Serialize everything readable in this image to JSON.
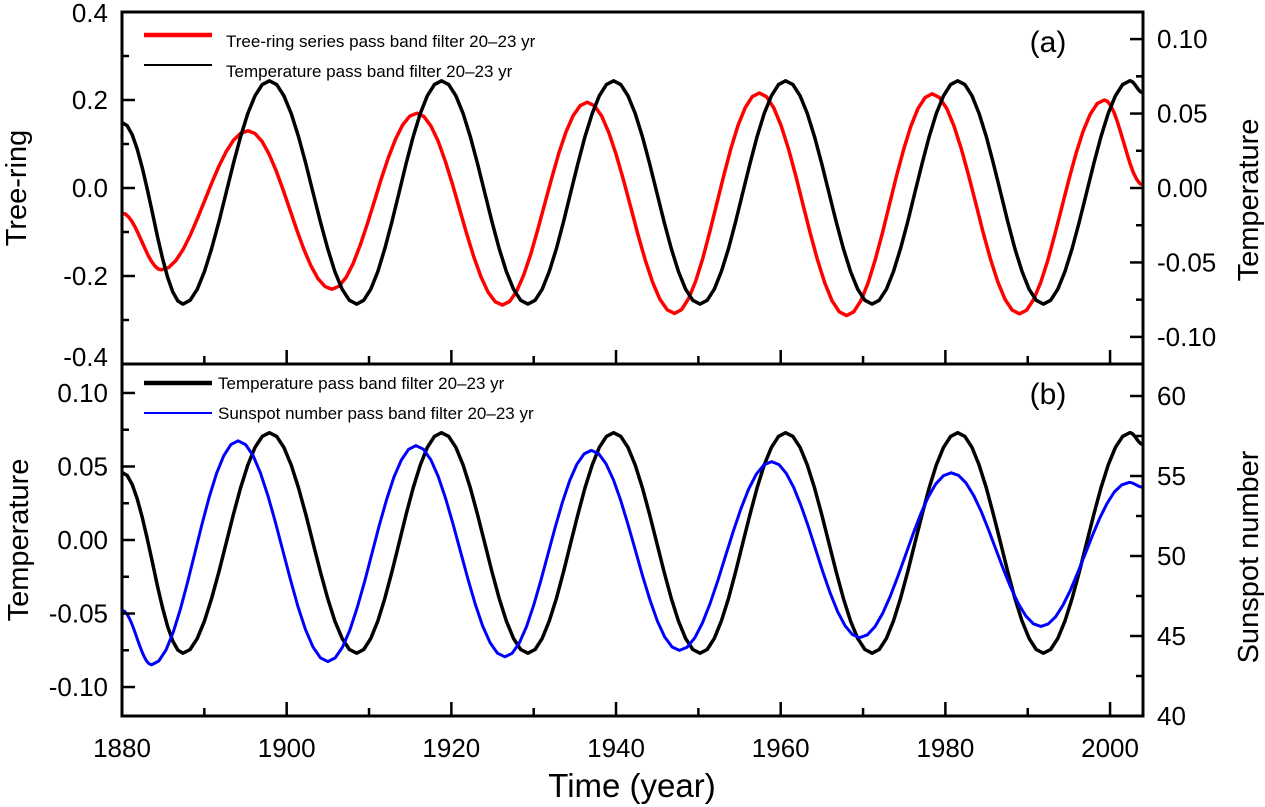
{
  "chart_data": [
    {
      "type": "line",
      "panel_label": "(a)",
      "xlabel": "",
      "xlim": [
        1880,
        2004
      ],
      "x_ticks": [
        1880,
        1900,
        1920,
        1940,
        1960,
        1980,
        2000
      ],
      "ylabel_left": "Tree-ring",
      "ylim_left": [
        -0.4,
        0.4
      ],
      "y_ticks_left": [
        "-0.4",
        "-0.2",
        "0.0",
        "0.2",
        "0.4"
      ],
      "y_tick_values_left": [
        -0.4,
        -0.2,
        0.0,
        0.2,
        0.4
      ],
      "ylabel_right": "Temperature",
      "ylim_right": [
        -0.1182,
        0.1182
      ],
      "y_ticks_right": [
        "-0.10",
        "-0.05",
        "0.00",
        "0.05",
        "0.10"
      ],
      "y_tick_values_right": [
        -0.1,
        -0.05,
        0.0,
        0.05,
        0.1
      ],
      "legend_position": "top-left",
      "series": [
        {
          "name": "Tree-ring series pass band filter 20–23 yr",
          "axis": "left",
          "color": "#ff0000",
          "keypoints": [
            [
              1880,
              -0.057
            ],
            [
              1884.8,
              -0.186
            ],
            [
              1895.3,
              0.13
            ],
            [
              1905.5,
              -0.23
            ],
            [
              1915.8,
              0.17
            ],
            [
              1926.2,
              -0.266
            ],
            [
              1936.5,
              0.195
            ],
            [
              1947.1,
              -0.285
            ],
            [
              1957.4,
              0.216
            ],
            [
              1968.0,
              -0.29
            ],
            [
              1978.4,
              0.214
            ],
            [
              1989.0,
              -0.286
            ],
            [
              1999.3,
              0.2
            ],
            [
              2004,
              0.007
            ]
          ]
        },
        {
          "name": "Temperature pass band filter 20–23 yr",
          "axis": "right",
          "color": "#000000",
          "keypoints": [
            [
              1880,
              0.044
            ],
            [
              1887.4,
              -0.078
            ],
            [
              1897.9,
              0.072
            ],
            [
              1908.5,
              -0.078
            ],
            [
              1918.8,
              0.072
            ],
            [
              1929.3,
              -0.078
            ],
            [
              1939.7,
              0.072
            ],
            [
              1950.2,
              -0.078
            ],
            [
              1960.6,
              0.072
            ],
            [
              1971.1,
              -0.078
            ],
            [
              1981.5,
              0.072
            ],
            [
              1991.9,
              -0.078
            ],
            [
              2002.4,
              0.072
            ],
            [
              2004,
              0.064
            ]
          ]
        }
      ]
    },
    {
      "type": "line",
      "panel_label": "(b)",
      "xlabel": "Time (year)",
      "xlim": [
        1880,
        2004
      ],
      "x_ticks": [
        1880,
        1900,
        1920,
        1940,
        1960,
        1980,
        2000
      ],
      "x_tick_labels": [
        "1880",
        "1900",
        "1920",
        "1940",
        "1960",
        "1980",
        "2000"
      ],
      "ylabel_left": "Temperature",
      "ylim_left": [
        -0.1197,
        0.1197
      ],
      "y_ticks_left": [
        "-0.10",
        "-0.05",
        "0.00",
        "0.05",
        "0.10"
      ],
      "y_tick_values_left": [
        -0.1,
        -0.05,
        0.0,
        0.05,
        0.1
      ],
      "ylabel_right": "Sunspot number",
      "ylim_right": [
        40,
        62
      ],
      "y_ticks_right": [
        "40",
        "45",
        "50",
        "55",
        "60"
      ],
      "y_tick_values_right": [
        40,
        45,
        50,
        55,
        60
      ],
      "legend_position": "top-left",
      "series": [
        {
          "name": "Temperature pass band filter 20–23 yr",
          "axis": "left",
          "color": "#000000",
          "keypoints": [
            [
              1880,
              0.046
            ],
            [
              1887.4,
              -0.077
            ],
            [
              1897.9,
              0.073
            ],
            [
              1908.5,
              -0.077
            ],
            [
              1918.8,
              0.073
            ],
            [
              1929.3,
              -0.077
            ],
            [
              1939.7,
              0.073
            ],
            [
              1950.2,
              -0.077
            ],
            [
              1960.6,
              0.073
            ],
            [
              1971.1,
              -0.077
            ],
            [
              1981.5,
              0.073
            ],
            [
              1991.9,
              -0.077
            ],
            [
              2002.4,
              0.073
            ],
            [
              2004,
              0.065
            ]
          ]
        },
        {
          "name": "Sunspot number pass band filter 20–23 yr",
          "axis": "right",
          "color": "#0000ff",
          "keypoints": [
            [
              1880,
              46.6
            ],
            [
              1883.6,
              43.2
            ],
            [
              1894.1,
              57.2
            ],
            [
              1905.0,
              43.4
            ],
            [
              1915.7,
              56.9
            ],
            [
              1926.5,
              43.7
            ],
            [
              1937.0,
              56.6
            ],
            [
              1947.7,
              44.1
            ],
            [
              1958.9,
              55.9
            ],
            [
              1969.6,
              44.9
            ],
            [
              1980.7,
              55.2
            ],
            [
              1991.6,
              45.6
            ],
            [
              2002.3,
              54.6
            ],
            [
              2004,
              54.3
            ]
          ]
        }
      ]
    }
  ]
}
